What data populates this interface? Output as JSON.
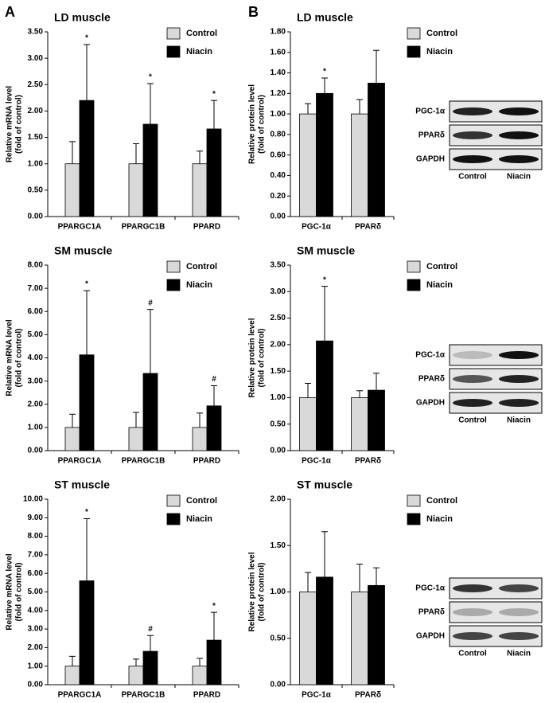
{
  "panels": [
    "A",
    "B"
  ],
  "blots": [
    {
      "rows": [
        "PGC-1α",
        "PPARδ",
        "GAPDH"
      ],
      "lanes": [
        "Control",
        "Niacin"
      ]
    },
    {
      "rows": [
        "PGC-1α",
        "PPARδ",
        "GAPDH"
      ],
      "lanes": [
        "Control",
        "Niacin"
      ]
    },
    {
      "rows": [
        "PGC-1α",
        "PPARδ",
        "GAPDH"
      ],
      "lanes": [
        "Control",
        "Niacin"
      ]
    }
  ],
  "chart_data": [
    {
      "type": "bar",
      "title": "LD muscle",
      "ylabel": [
        "Relative mRNA level",
        "(fold of control)"
      ],
      "categories": [
        "PPARGC1A",
        "PPARGC1B",
        "PPARD"
      ],
      "series": [
        {
          "name": "Control",
          "color": "#d9d9d9",
          "values": [
            1,
            1,
            1
          ],
          "errors": [
            0.42,
            0.38,
            0.24
          ]
        },
        {
          "name": "Niacin",
          "color": "#000000",
          "values": [
            2.2,
            1.75,
            1.66
          ],
          "errors": [
            1.06,
            0.77,
            0.54
          ],
          "markers": [
            "*",
            "*",
            "*"
          ]
        }
      ],
      "ylim": [
        0,
        3.5
      ],
      "yticks": [
        {
          "value": 0,
          "label": "0.00"
        },
        {
          "value": 0.5,
          "label": "0.50"
        },
        {
          "value": 1,
          "label": "1.00"
        },
        {
          "value": 1.5,
          "label": "1.50"
        },
        {
          "value": 2,
          "label": "2.00"
        },
        {
          "value": 2.5,
          "label": "2.50"
        },
        {
          "value": 3,
          "label": "3.00"
        },
        {
          "value": 3.5,
          "label": "3.50"
        }
      ]
    },
    {
      "type": "bar",
      "title": "LD muscle",
      "ylabel": [
        "Relative protein level",
        "(fold of control)"
      ],
      "categories": [
        "PGC-1α",
        "PPARδ"
      ],
      "series": [
        {
          "name": "Control",
          "color": "#d9d9d9",
          "values": [
            1,
            1
          ],
          "errors": [
            0.1,
            0.14
          ]
        },
        {
          "name": "Niacin",
          "color": "#000000",
          "values": [
            1.2,
            1.3
          ],
          "errors": [
            0.15,
            0.32
          ],
          "markers": [
            "*",
            null
          ]
        }
      ],
      "ylim": [
        0,
        1.8
      ],
      "yticks": [
        {
          "value": 0,
          "label": "0.00"
        },
        {
          "value": 0.2,
          "label": "0.20"
        },
        {
          "value": 0.4,
          "label": "0.40"
        },
        {
          "value": 0.6,
          "label": "0.60"
        },
        {
          "value": 0.8,
          "label": "0.80"
        },
        {
          "value": 1,
          "label": "1.00"
        },
        {
          "value": 1.2,
          "label": "1.20"
        },
        {
          "value": 1.4,
          "label": "1.40"
        },
        {
          "value": 1.6,
          "label": "1.60"
        },
        {
          "value": 1.8,
          "label": "1.80"
        }
      ]
    },
    {
      "type": "bar",
      "title": "SM muscle",
      "ylabel": [
        "Relative mRNA level",
        "(fold of control)"
      ],
      "categories": [
        "PPARGC1A",
        "PPARGC1B",
        "PPARD"
      ],
      "series": [
        {
          "name": "Control",
          "color": "#d9d9d9",
          "values": [
            1,
            1,
            1
          ],
          "errors": [
            0.57,
            0.65,
            0.62
          ]
        },
        {
          "name": "Niacin",
          "color": "#000000",
          "values": [
            4.13,
            3.33,
            1.93
          ],
          "errors": [
            2.77,
            2.76,
            0.87
          ],
          "markers": [
            "*",
            "#",
            "#"
          ]
        }
      ],
      "ylim": [
        0,
        8
      ],
      "yticks": [
        {
          "value": 0,
          "label": "0.00"
        },
        {
          "value": 1,
          "label": "1.00"
        },
        {
          "value": 2,
          "label": "2.00"
        },
        {
          "value": 3,
          "label": "3.00"
        },
        {
          "value": 4,
          "label": "4.00"
        },
        {
          "value": 5,
          "label": "5.00"
        },
        {
          "value": 6,
          "label": "6.00"
        },
        {
          "value": 7,
          "label": "7.00"
        },
        {
          "value": 8,
          "label": "8.00"
        }
      ]
    },
    {
      "type": "bar",
      "title": "SM muscle",
      "ylabel": [
        "Relative protein level",
        "(fold of control)"
      ],
      "categories": [
        "PGC-1α",
        "PPARδ"
      ],
      "series": [
        {
          "name": "Control",
          "color": "#d9d9d9",
          "values": [
            1,
            1
          ],
          "errors": [
            0.27,
            0.13
          ]
        },
        {
          "name": "Niacin",
          "color": "#000000",
          "values": [
            2.07,
            1.14
          ],
          "errors": [
            1.03,
            0.32
          ],
          "markers": [
            "*",
            null
          ]
        }
      ],
      "ylim": [
        0,
        3.5
      ],
      "yticks": [
        {
          "value": 0,
          "label": "0.00"
        },
        {
          "value": 0.5,
          "label": "0.50"
        },
        {
          "value": 1,
          "label": "1.00"
        },
        {
          "value": 1.5,
          "label": "1.50"
        },
        {
          "value": 2,
          "label": "2.00"
        },
        {
          "value": 2.5,
          "label": "2.50"
        },
        {
          "value": 3,
          "label": "3.00"
        },
        {
          "value": 3.5,
          "label": "3.50"
        }
      ]
    },
    {
      "type": "bar",
      "title": "ST muscle",
      "ylabel": [
        "Relative mRNA level",
        "(fold of control)"
      ],
      "categories": [
        "PPARGC1A",
        "PPARGC1B",
        "PPARD"
      ],
      "series": [
        {
          "name": "Control",
          "color": "#d9d9d9",
          "values": [
            1,
            1,
            1
          ],
          "errors": [
            0.53,
            0.38,
            0.42
          ]
        },
        {
          "name": "Niacin",
          "color": "#000000",
          "values": [
            5.6,
            1.8,
            2.4
          ],
          "errors": [
            3.35,
            0.85,
            1.5
          ],
          "markers": [
            "*",
            "#",
            "*"
          ]
        }
      ],
      "ylim": [
        0,
        10
      ],
      "yticks": [
        {
          "value": 0,
          "label": "0.00"
        },
        {
          "value": 1,
          "label": "1.00"
        },
        {
          "value": 2,
          "label": "2.00"
        },
        {
          "value": 3,
          "label": "3.00"
        },
        {
          "value": 4,
          "label": "4.00"
        },
        {
          "value": 5,
          "label": "5.00"
        },
        {
          "value": 6,
          "label": "6.00"
        },
        {
          "value": 7,
          "label": "7.00"
        },
        {
          "value": 8,
          "label": "8.00"
        },
        {
          "value": 9,
          "label": "9.00"
        },
        {
          "value": 10,
          "label": "10.00"
        }
      ]
    },
    {
      "type": "bar",
      "title": "ST muscle",
      "ylabel": [
        "Relative protein level",
        "(fold of control)"
      ],
      "categories": [
        "PGC-1α",
        "PPARδ"
      ],
      "series": [
        {
          "name": "Control",
          "color": "#d9d9d9",
          "values": [
            1,
            1
          ],
          "errors": [
            0.21,
            0.3
          ]
        },
        {
          "name": "Niacin",
          "color": "#000000",
          "values": [
            1.16,
            1.07
          ],
          "errors": [
            0.49,
            0.19
          ]
        }
      ],
      "ylim": [
        0,
        2
      ],
      "yticks": [
        {
          "value": 0,
          "label": "0.00"
        },
        {
          "value": 0.5,
          "label": "0.50"
        },
        {
          "value": 1,
          "label": "1.00"
        },
        {
          "value": 1.5,
          "label": "1.50"
        },
        {
          "value": 2,
          "label": "2.00"
        }
      ]
    }
  ]
}
